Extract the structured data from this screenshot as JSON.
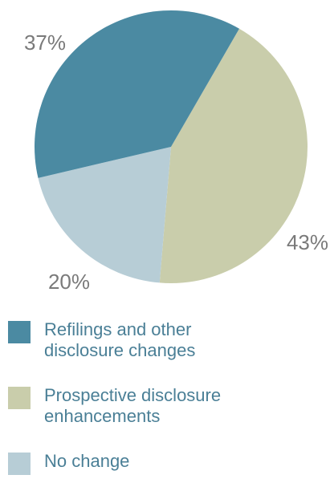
{
  "chart_data": {
    "type": "pie",
    "slices": [
      {
        "label": "Refilings and other disclosure changes",
        "value": 37,
        "pct_label": "37%",
        "color": "#4b8aa2"
      },
      {
        "label": "Prospective disclosure enhancements",
        "value": 43,
        "pct_label": "43%",
        "color": "#c9cdab"
      },
      {
        "label": "No change",
        "value": 20,
        "pct_label": "20%",
        "color": "#b7cdd6"
      }
    ],
    "legend_position": "bottom"
  },
  "legend": {
    "items": [
      {
        "line1": "Refilings and other",
        "line2": "disclosure changes",
        "color": "#4b8aa2"
      },
      {
        "line1": "Prospective disclosure",
        "line2": "enhancements",
        "color": "#c9cdab"
      },
      {
        "line1": "No change",
        "line2": "",
        "color": "#b7cdd6"
      }
    ]
  },
  "colors": {
    "label_text": "#7a7a7a",
    "legend_text": "#4a7f96"
  }
}
